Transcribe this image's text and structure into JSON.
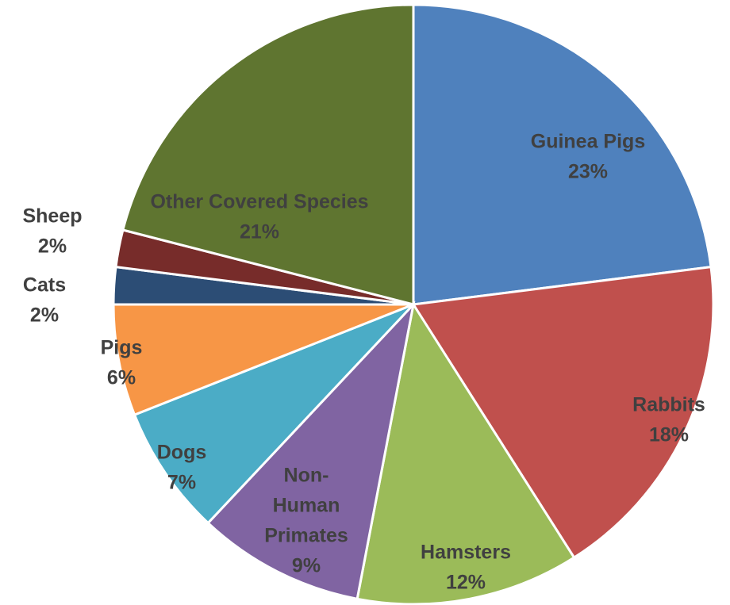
{
  "chart_data": {
    "type": "pie",
    "title": "",
    "slices": [
      {
        "label": "Guinea Pigs",
        "pct_text": "23%",
        "value": 23,
        "color": "#4F81BD"
      },
      {
        "label": "Rabbits",
        "pct_text": "18%",
        "value": 18,
        "color": "#C0504D"
      },
      {
        "label": "Hamsters",
        "pct_text": "12%",
        "value": 12,
        "color": "#9BBB59"
      },
      {
        "label": "Non-Human Primates",
        "pct_text": "9%",
        "value": 9,
        "color": "#8064A2"
      },
      {
        "label": "Dogs",
        "pct_text": "7%",
        "value": 7,
        "color": "#4BACC6"
      },
      {
        "label": "Pigs",
        "pct_text": "6%",
        "value": 6,
        "color": "#F79646"
      },
      {
        "label": "Cats",
        "pct_text": "2%",
        "value": 2,
        "color": "#2C4D75"
      },
      {
        "label": "Sheep",
        "pct_text": "2%",
        "value": 2,
        "color": "#772C2A"
      },
      {
        "label": "Other Covered Species",
        "pct_text": "21%",
        "value": 21,
        "color": "#5F7530"
      }
    ],
    "legend": "none"
  }
}
